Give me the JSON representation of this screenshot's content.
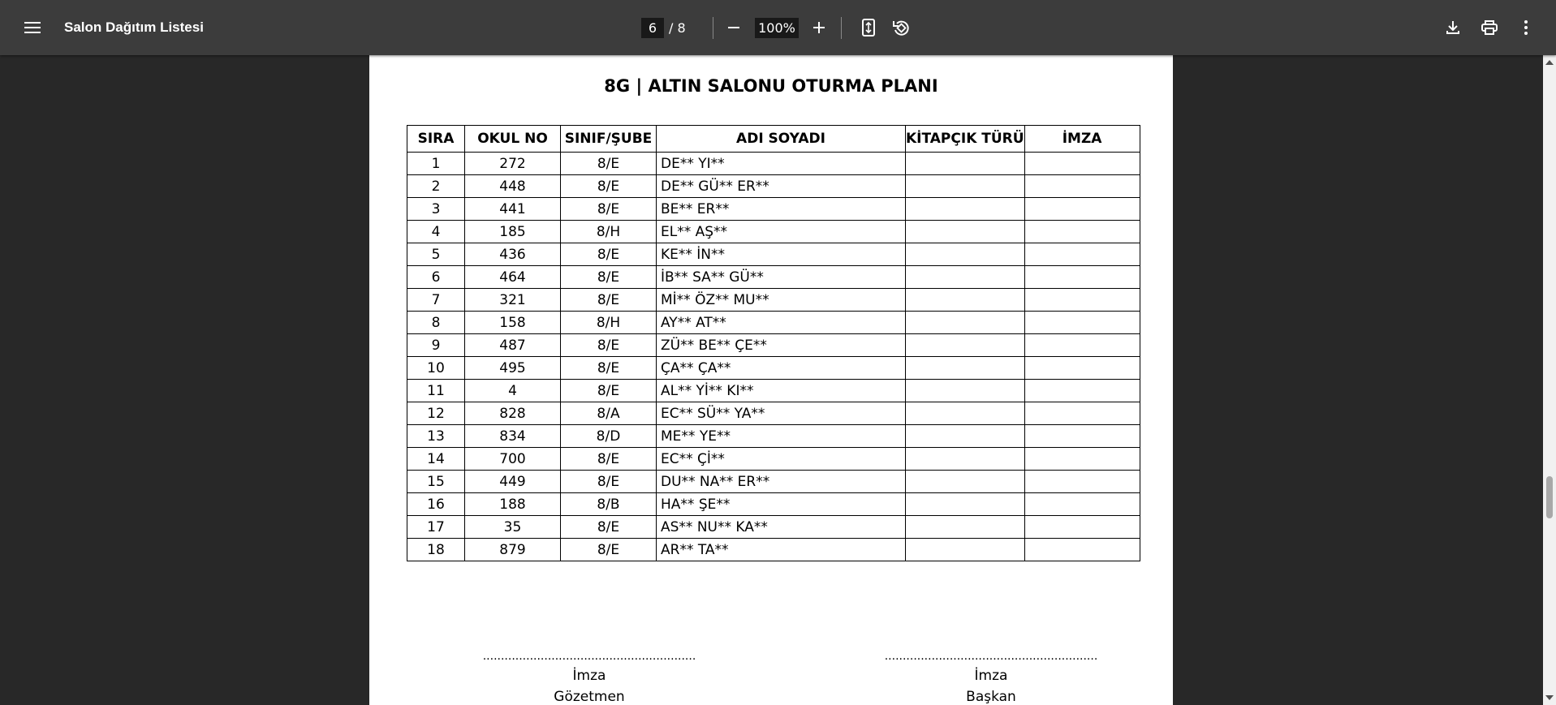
{
  "toolbar": {
    "title": "Salon Dağıtım Listesi",
    "current_page": "6",
    "page_total": "/  8",
    "zoom": "100%"
  },
  "document": {
    "title": "8G | ALTIN SALONU OTURMA PLANI",
    "headers": [
      "SIRA",
      "OKUL NO",
      "SINIF/ŞUBE",
      "ADI SOYADI",
      "KİTAPÇIK TÜRÜ",
      "İMZA"
    ],
    "rows": [
      [
        "1",
        "272",
        "8/E",
        "DE** YI**"
      ],
      [
        "2",
        "448",
        "8/E",
        "DE** GÜ** ER**"
      ],
      [
        "3",
        "441",
        "8/E",
        "BE** ER**"
      ],
      [
        "4",
        "185",
        "8/H",
        "EL** AŞ**"
      ],
      [
        "5",
        "436",
        "8/E",
        "KE** İN**"
      ],
      [
        "6",
        "464",
        "8/E",
        "İB** SA** GÜ**"
      ],
      [
        "7",
        "321",
        "8/E",
        "Mİ** ÖZ** MU**"
      ],
      [
        "8",
        "158",
        "8/H",
        "AY** AT**"
      ],
      [
        "9",
        "487",
        "8/E",
        "ZÜ** BE** ÇE**"
      ],
      [
        "10",
        "495",
        "8/E",
        "ÇA** ÇA**"
      ],
      [
        "11",
        "4",
        "8/E",
        "AL** Yİ** KI**"
      ],
      [
        "12",
        "828",
        "8/A",
        "EC** SÜ** YA**"
      ],
      [
        "13",
        "834",
        "8/D",
        "ME** YE**"
      ],
      [
        "14",
        "700",
        "8/E",
        "EC** Çİ**"
      ],
      [
        "15",
        "449",
        "8/E",
        "DU** NA** ER**"
      ],
      [
        "16",
        "188",
        "8/B",
        "HA** ŞE**"
      ],
      [
        "17",
        "35",
        "8/E",
        "AS** NU** KA**"
      ],
      [
        "18",
        "879",
        "8/E",
        "AR** TA**"
      ]
    ],
    "signatures": [
      {
        "dots": "...........................................................",
        "label": "İmza",
        "role": "Gözetmen"
      },
      {
        "dots": "...........................................................",
        "label": "İmza",
        "role": "Başkan"
      }
    ]
  }
}
